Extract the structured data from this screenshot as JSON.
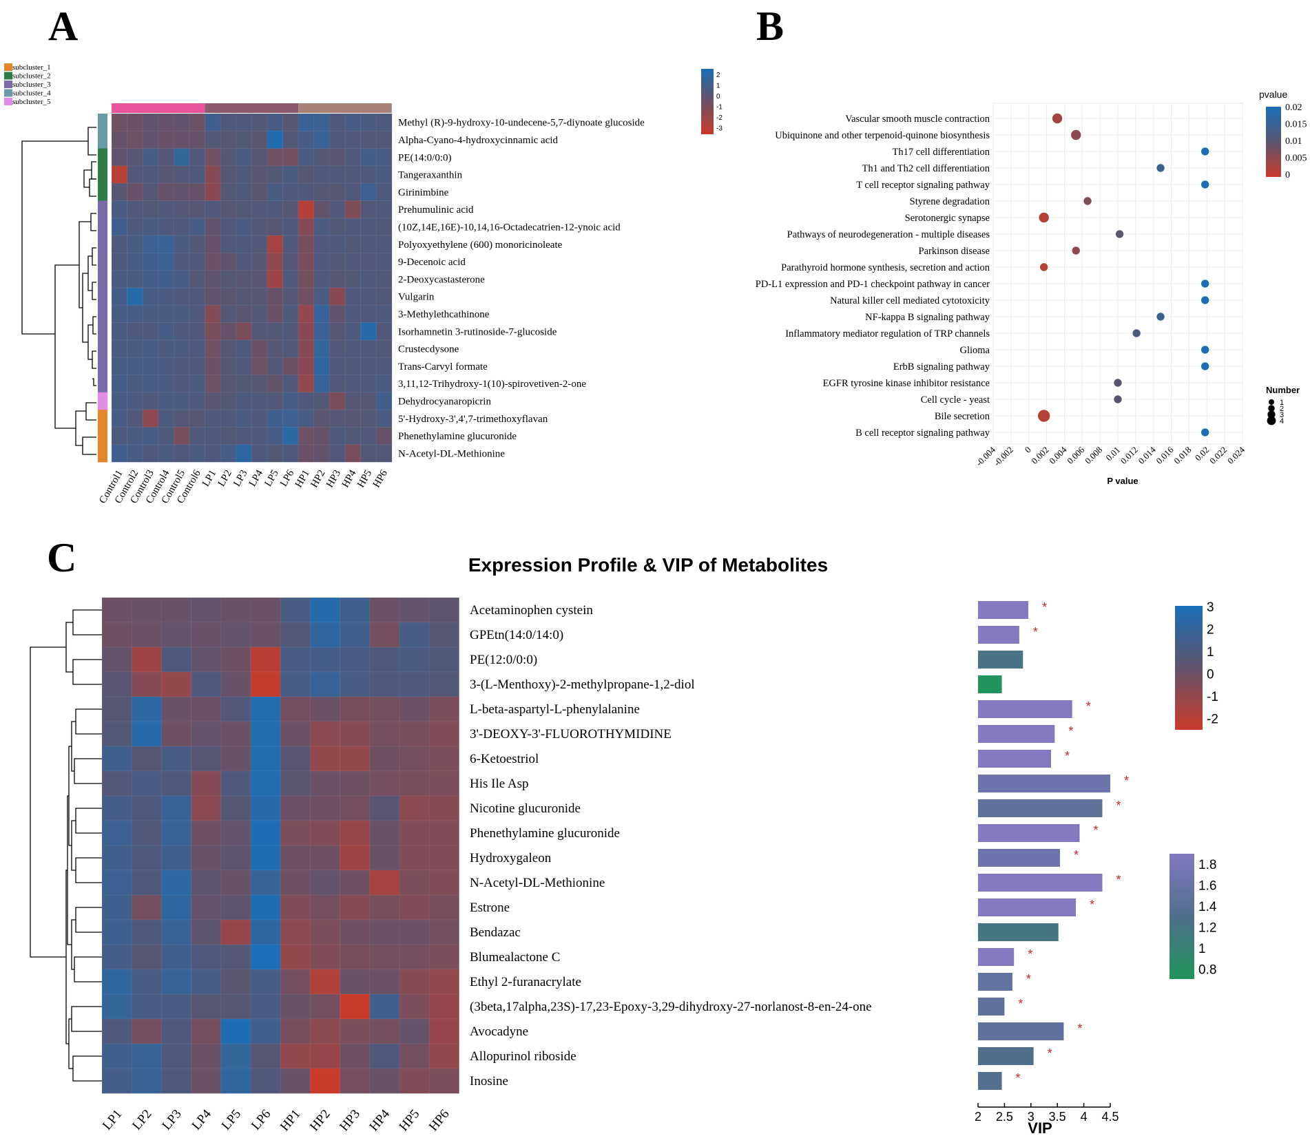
{
  "panels": {
    "a": "A",
    "b": "B",
    "c": "C"
  },
  "colors": {
    "high": "#1a6fb8",
    "mid": "#5a5570",
    "low": "#c93a2a",
    "star": "#cc2222"
  },
  "chart_data": [
    {
      "id": "A",
      "type": "heatmap",
      "title": "",
      "columns": [
        "Control1",
        "Control2",
        "Control3",
        "Control4",
        "Control5",
        "Control6",
        "LP1",
        "LP2",
        "LP3",
        "LP4",
        "LP5",
        "LP6",
        "HP1",
        "HP2",
        "HP3",
        "HP4",
        "HP5",
        "HP6"
      ],
      "rows": [
        "Methyl (R)-9-hydroxy-10-undecene-5,7-diynoate glucoside",
        "Alpha-Cyano-4-hydroxycinnamic acid",
        "PE(14:0/0:0)",
        "Tangeraxanthin",
        "Girinimbine",
        "Prehumulinic acid",
        "(10Z,14E,16E)-10,14,16-Octadecatrien-12-ynoic acid",
        "Polyoxyethylene (600) monoricinoleate",
        "9-Decenoic acid",
        "2-Deoxycastasterone",
        "Vulgarin",
        "3-Methylethcathinone",
        "Isorhamnetin 3-rutinoside-7-glucoside",
        "Crustecdysone",
        "Trans-Carvyl formate",
        "3,11,12-Trihydroxy-1(10)-spirovetiven-2-one",
        "Dehydrocyanaropicrin",
        "5'-Hydroxy-3',4',7-trimethoxyflavan",
        "Phenethylamine glucuronide",
        "N-Acetyl-DL-Methionine"
      ],
      "row_subcluster": [
        4,
        4,
        2,
        2,
        2,
        3,
        3,
        3,
        3,
        3,
        3,
        3,
        3,
        3,
        3,
        3,
        5,
        1,
        1,
        1
      ],
      "group_bar": [
        {
          "group": "Control",
          "color": "#e8539a"
        },
        {
          "group": "LP",
          "color": "#8c5a6e"
        },
        {
          "group": "HP",
          "color": "#a88078"
        }
      ],
      "subclusters": [
        {
          "label": "subcluster_1",
          "color": "#e6862a"
        },
        {
          "label": "subcluster_2",
          "color": "#2e7d47"
        },
        {
          "label": "subcluster_3",
          "color": "#7a6aaa"
        },
        {
          "label": "subcluster_4",
          "color": "#6a9aa8"
        },
        {
          "label": "subcluster_5",
          "color": "#e58be6"
        }
      ],
      "legend_ticks": [
        "2",
        "1",
        "0",
        "-1",
        "-2",
        "-3"
      ],
      "value_range": [
        -3,
        2
      ],
      "values": [
        [
          -0.5,
          -0.4,
          -0.2,
          -0.3,
          -0.2,
          -0.5,
          0.8,
          0.3,
          0.4,
          0.2,
          0.6,
          0.1,
          1.0,
          0.9,
          0.3,
          0.6,
          0.5,
          0.4
        ],
        [
          -0.3,
          -0.5,
          -0.2,
          -0.4,
          -0.3,
          -0.3,
          0.2,
          0.1,
          0.2,
          0.0,
          1.8,
          0.2,
          0.6,
          1.0,
          0.4,
          0.3,
          0.2,
          0.2
        ],
        [
          -0.2,
          0.1,
          0.6,
          0.2,
          1.2,
          0.3,
          -0.6,
          0.2,
          0.5,
          0.1,
          -0.6,
          -0.7,
          0.5,
          0.2,
          0.0,
          0.4,
          0.7,
          0.5
        ],
        [
          -2.5,
          0.2,
          0.3,
          0.1,
          0.2,
          0.4,
          -1.2,
          0.1,
          0.3,
          0.0,
          0.2,
          0.5,
          0.1,
          0.3,
          0.3,
          0.2,
          0.3,
          0.5
        ],
        [
          0.1,
          -0.4,
          0.2,
          -0.3,
          -0.2,
          -0.3,
          -1.3,
          0.2,
          0.3,
          0.0,
          0.5,
          0.4,
          0.3,
          0.2,
          0.1,
          0.3,
          0.9,
          0.4
        ],
        [
          0.5,
          0.3,
          0.2,
          0.3,
          0.2,
          0.1,
          0.3,
          0.1,
          0.2,
          0.2,
          0.3,
          0.1,
          -2.4,
          -0.2,
          0.3,
          -1.0,
          0.2,
          0.3
        ],
        [
          0.8,
          0.4,
          0.5,
          0.4,
          0.3,
          0.6,
          -0.2,
          0.3,
          0.5,
          0.2,
          0.1,
          0.4,
          -1.2,
          0.5,
          0.2,
          0.3,
          0.4,
          0.2
        ],
        [
          0.3,
          0.5,
          0.9,
          1.0,
          0.5,
          0.2,
          -0.3,
          0.3,
          0.4,
          0.2,
          -2.0,
          0.3,
          -0.8,
          0.3,
          0.4,
          0.2,
          0.3,
          0.3
        ],
        [
          0.4,
          0.6,
          0.8,
          0.9,
          0.4,
          0.3,
          -0.4,
          -0.2,
          0.3,
          0.1,
          -1.4,
          0.2,
          -0.9,
          0.4,
          0.2,
          0.3,
          0.2,
          0.3
        ],
        [
          0.5,
          0.5,
          0.7,
          0.8,
          0.6,
          0.2,
          -0.1,
          0.2,
          0.1,
          0.0,
          -1.8,
          0.3,
          -0.7,
          0.4,
          0.1,
          0.2,
          0.4,
          0.2
        ],
        [
          0.7,
          1.6,
          0.6,
          0.5,
          0.4,
          0.3,
          -0.2,
          0.0,
          0.2,
          0.1,
          -0.3,
          0.2,
          -0.6,
          0.5,
          -1.3,
          0.3,
          0.4,
          0.2
        ],
        [
          0.6,
          0.6,
          0.5,
          0.5,
          0.5,
          0.3,
          -1.1,
          0.2,
          0.0,
          0.2,
          -0.4,
          0.4,
          -1.5,
          1.1,
          -0.2,
          0.3,
          0.3,
          0.4
        ],
        [
          0.5,
          0.4,
          0.4,
          0.6,
          0.4,
          0.3,
          -0.8,
          -0.3,
          -0.9,
          0.2,
          0.2,
          0.3,
          -1.3,
          1.0,
          0.1,
          0.4,
          1.6,
          0.3
        ],
        [
          0.5,
          0.5,
          0.6,
          0.4,
          0.5,
          0.4,
          -0.6,
          0.2,
          0.4,
          -0.4,
          0.1,
          0.3,
          -1.2,
          1.2,
          0.2,
          0.3,
          0.4,
          0.2
        ],
        [
          0.6,
          0.6,
          0.6,
          0.5,
          0.4,
          0.3,
          -0.4,
          0.2,
          0.3,
          -0.5,
          0.2,
          -0.4,
          -1.3,
          1.3,
          0.3,
          0.2,
          0.3,
          0.3
        ],
        [
          0.7,
          0.5,
          0.6,
          0.5,
          0.3,
          0.5,
          -0.5,
          0.1,
          0.2,
          0.1,
          -0.2,
          0.3,
          -1.5,
          1.1,
          0.2,
          0.3,
          0.4,
          0.5
        ],
        [
          0.6,
          0.5,
          0.3,
          0.5,
          0.5,
          0.4,
          0.0,
          0.2,
          0.4,
          0.3,
          0.2,
          0.6,
          0.3,
          0.2,
          -0.9,
          0.2,
          0.1,
          0.8
        ],
        [
          0.6,
          0.3,
          -1.4,
          0.4,
          0.2,
          0.1,
          0.3,
          0.3,
          0.5,
          0.3,
          0.8,
          0.9,
          0.5,
          0.0,
          0.2,
          0.1,
          0.2,
          0.5
        ],
        [
          0.4,
          0.5,
          0.6,
          0.4,
          -0.8,
          0.3,
          0.4,
          0.2,
          0.3,
          0.4,
          0.6,
          1.5,
          -0.5,
          -0.3,
          0.4,
          0.2,
          0.3,
          -0.3
        ],
        [
          0.8,
          0.6,
          0.4,
          0.5,
          0.3,
          0.5,
          0.4,
          0.6,
          1.4,
          0.4,
          0.2,
          0.4,
          -0.4,
          -0.2,
          0.3,
          -0.8,
          0.2,
          0.2
        ]
      ]
    },
    {
      "id": "B",
      "type": "scatter",
      "title": "",
      "xlabel": "P value",
      "ylabel": "",
      "xlim": [
        -0.004,
        0.024
      ],
      "xticks": [
        "-0.004",
        "-0.002",
        "0",
        "0.002",
        "0.004",
        "0.006",
        "0.008",
        "0.01",
        "0.012",
        "0.014",
        "0.016",
        "0.018",
        "0.02",
        "0.022",
        "0.024"
      ],
      "color_legend_title": "pvalue",
      "color_legend_ticks": [
        "0.02",
        "0.015",
        "0.01",
        "0.005",
        "0"
      ],
      "size_legend_title": "Number",
      "size_legend_ticks": [
        "1",
        "2",
        "3",
        "4"
      ],
      "points": [
        {
          "pathway": "Vascular smooth muscle contraction",
          "p": 0.0032,
          "number": 2
        },
        {
          "pathway": "Ubiquinone and other terpenoid-quinone biosynthesis",
          "p": 0.0053,
          "number": 2
        },
        {
          "pathway": "Th17 cell differentiation",
          "p": 0.0198,
          "number": 1
        },
        {
          "pathway": "Th1 and Th2 cell differentiation",
          "p": 0.0148,
          "number": 1
        },
        {
          "pathway": "T cell receptor signaling pathway",
          "p": 0.0198,
          "number": 1
        },
        {
          "pathway": "Styrene degradation",
          "p": 0.0066,
          "number": 1
        },
        {
          "pathway": "Serotonergic synapse",
          "p": 0.0017,
          "number": 2
        },
        {
          "pathway": "Pathways of neurodegeneration - multiple diseases",
          "p": 0.0102,
          "number": 1
        },
        {
          "pathway": "Parkinson disease",
          "p": 0.0053,
          "number": 1
        },
        {
          "pathway": "Parathyroid hormone synthesis, secretion and action",
          "p": 0.0017,
          "number": 1
        },
        {
          "pathway": "PD-L1 expression and PD-1 checkpoint pathway in cancer",
          "p": 0.0198,
          "number": 1
        },
        {
          "pathway": "Natural killer cell mediated cytotoxicity",
          "p": 0.0198,
          "number": 1
        },
        {
          "pathway": "NF-kappa B signaling pathway",
          "p": 0.0148,
          "number": 1
        },
        {
          "pathway": "Inflammatory mediator regulation of TRP channels",
          "p": 0.0121,
          "number": 1
        },
        {
          "pathway": "Glioma",
          "p": 0.0198,
          "number": 1
        },
        {
          "pathway": "ErbB signaling pathway",
          "p": 0.0198,
          "number": 1
        },
        {
          "pathway": "EGFR tyrosine kinase inhibitor resistance",
          "p": 0.01,
          "number": 1
        },
        {
          "pathway": "Cell cycle - yeast",
          "p": 0.01,
          "number": 1
        },
        {
          "pathway": "Bile secretion",
          "p": 0.0017,
          "number": 3
        },
        {
          "pathway": "B cell receptor signaling pathway",
          "p": 0.0198,
          "number": 1
        }
      ]
    },
    {
      "id": "C",
      "type": "heatmap",
      "title": "Expression Profile & VIP of Metabolites",
      "columns": [
        "LP1",
        "LP2",
        "LP3",
        "LP4",
        "LP5",
        "LP6",
        "HP1",
        "HP2",
        "HP3",
        "HP4",
        "HP5",
        "HP6"
      ],
      "rows": [
        "Acetaminophen cystein",
        "GPEtn(14:0/14:0)",
        "PE(12:0/0:0)",
        "3-(L-Menthoxy)-2-methylpropane-1,2-diol",
        "L-beta-aspartyl-L-phenylalanine",
        "3'-DEOXY-3'-FLUOROTHYMIDINE",
        "6-Ketoestriol",
        "His Ile Asp",
        "Nicotine glucuronide",
        "Phenethylamine glucuronide",
        "Hydroxygaleon",
        "N-Acetyl-DL-Methionine",
        "Estrone",
        "Bendazac",
        "Blumealactone C",
        "Ethyl 2-furanacrylate",
        "(3beta,17alpha,23S)-17,23-Epoxy-3,29-dihydroxy-27-norlanost-8-en-24-one",
        "Avocadyne",
        "Allopurinol riboside",
        "Inosine"
      ],
      "legend_ticks": [
        "3",
        "2",
        "1",
        "0",
        "-1",
        "-2"
      ],
      "value_range": [
        -2.6,
        3
      ],
      "values": [
        [
          -0.4,
          -0.3,
          -0.3,
          -0.2,
          -0.3,
          -0.4,
          0.8,
          2.5,
          1.2,
          -0.4,
          -0.2,
          -0.1
        ],
        [
          -0.5,
          -0.4,
          -0.2,
          -0.3,
          -0.2,
          -0.4,
          0.3,
          2.0,
          1.2,
          -0.6,
          0.9,
          0.2
        ],
        [
          -0.2,
          -1.6,
          0.6,
          -0.2,
          -0.5,
          -2.2,
          0.8,
          1.0,
          0.8,
          0.6,
          0.7,
          0.4
        ],
        [
          0.1,
          -1.0,
          -1.3,
          0.5,
          -0.3,
          -2.4,
          0.9,
          1.6,
          0.8,
          0.6,
          0.5,
          0.3
        ],
        [
          0.2,
          2.2,
          -0.3,
          -0.4,
          0.4,
          2.6,
          -0.6,
          -0.4,
          -0.7,
          -0.6,
          -0.4,
          -0.8
        ],
        [
          0.3,
          2.4,
          -0.5,
          -0.2,
          -0.4,
          2.6,
          -0.4,
          -1.1,
          -1.0,
          -0.6,
          -0.7,
          -0.9
        ],
        [
          1.2,
          0.2,
          0.8,
          0.2,
          -0.3,
          2.6,
          0.1,
          -1.3,
          -1.3,
          -0.5,
          -0.6,
          -0.8
        ],
        [
          0.3,
          0.8,
          0.6,
          -1.0,
          0.6,
          2.6,
          0.0,
          -0.4,
          -0.5,
          -0.6,
          -0.7,
          -0.8
        ],
        [
          1.0,
          0.6,
          1.6,
          -1.1,
          0.2,
          2.4,
          -0.4,
          -0.5,
          -0.6,
          0.1,
          -1.1,
          -1.0
        ],
        [
          1.4,
          0.4,
          1.6,
          -0.5,
          -0.2,
          2.8,
          -0.8,
          -0.9,
          -1.4,
          -0.3,
          -0.9,
          -0.9
        ],
        [
          1.2,
          0.6,
          1.2,
          -0.3,
          -0.1,
          2.7,
          -0.5,
          -0.5,
          -1.6,
          -0.3,
          -0.9,
          -0.9
        ],
        [
          1.4,
          0.5,
          2.2,
          -0.1,
          -0.3,
          1.6,
          -0.5,
          -0.2,
          -0.5,
          -1.7,
          -0.8,
          -0.9
        ],
        [
          1.3,
          -0.6,
          2.0,
          -0.2,
          -0.1,
          2.7,
          -0.9,
          -0.6,
          -1.0,
          -0.7,
          -0.9,
          -0.7
        ],
        [
          1.3,
          0.5,
          1.6,
          -0.1,
          -1.4,
          2.1,
          -1.2,
          -0.8,
          -0.5,
          -0.4,
          -0.4,
          -0.6
        ],
        [
          1.0,
          0.2,
          1.2,
          0.6,
          0.3,
          2.9,
          -1.3,
          -0.9,
          -0.7,
          -0.6,
          -0.6,
          -0.8
        ],
        [
          2.0,
          0.8,
          1.6,
          0.9,
          0.0,
          0.9,
          -0.6,
          -2.0,
          -0.3,
          -0.4,
          -1.0,
          -1.3
        ],
        [
          1.8,
          0.8,
          0.8,
          0.2,
          0.2,
          0.8,
          -0.3,
          -0.6,
          -2.6,
          1.2,
          -0.8,
          -1.4
        ],
        [
          0.6,
          -0.6,
          0.6,
          -0.6,
          2.8,
          1.2,
          -0.7,
          -1.1,
          -0.8,
          -0.6,
          -0.2,
          -1.4
        ],
        [
          1.2,
          1.6,
          0.6,
          -0.4,
          1.8,
          0.2,
          -1.3,
          -1.4,
          -0.5,
          0.6,
          -0.6,
          -1.3
        ],
        [
          1.0,
          1.5,
          0.6,
          -0.4,
          1.9,
          0.4,
          -0.3,
          -2.6,
          -0.6,
          -0.3,
          -0.9,
          -0.8
        ]
      ],
      "vip": [
        2.95,
        2.78,
        2.85,
        2.45,
        3.78,
        3.45,
        3.38,
        4.5,
        4.35,
        3.92,
        3.55,
        4.35,
        3.85,
        3.52,
        2.68,
        2.65,
        2.5,
        3.62,
        3.05,
        2.45
      ],
      "vip_color": [
        1.8,
        1.8,
        1.25,
        0.8,
        1.8,
        1.8,
        1.8,
        1.6,
        1.45,
        1.8,
        1.6,
        1.8,
        1.8,
        1.2,
        1.8,
        1.5,
        1.45,
        1.45,
        1.3,
        1.35
      ],
      "vip_significant": [
        true,
        true,
        false,
        false,
        true,
        true,
        true,
        true,
        true,
        true,
        true,
        true,
        true,
        false,
        true,
        true,
        true,
        true,
        true,
        true
      ],
      "vip_xlabel": "VIP",
      "vip_xlim": [
        2,
        4.5
      ],
      "vip_xticks": [
        "2",
        "2.5",
        "3",
        "3.5",
        "4",
        "4.5"
      ],
      "vip_legend_ticks": [
        "1.8",
        "1.6",
        "1.4",
        "1.2",
        "1",
        "0.8"
      ],
      "significance_marker": "*"
    }
  ]
}
